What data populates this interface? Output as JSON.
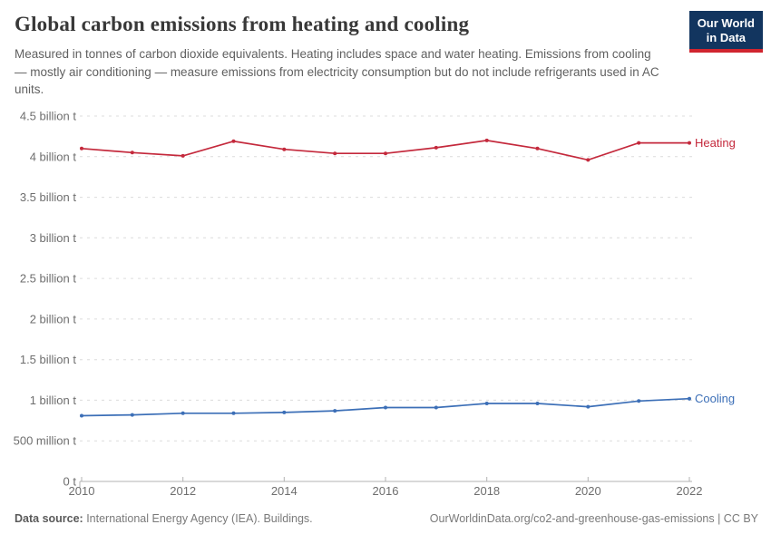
{
  "header": {
    "title": "Global carbon emissions from heating and cooling",
    "subtitle": "Measured in tonnes of carbon dioxide equivalents. Heating includes space and water heating. Emissions from cooling — mostly air conditioning — measure emissions from electricity consumption but do not include refrigerants used in AC units."
  },
  "logo": {
    "line1": "Our World",
    "line2": "in Data",
    "bg_color": "#12355f",
    "accent_color": "#d0252f"
  },
  "chart_data": {
    "type": "line",
    "title": "Global carbon emissions from heating and cooling",
    "x": [
      2010,
      2011,
      2012,
      2013,
      2014,
      2015,
      2016,
      2017,
      2018,
      2019,
      2020,
      2021,
      2022
    ],
    "series": [
      {
        "name": "Heating",
        "color": "#c4293c",
        "values_billion_t": [
          4.1,
          4.05,
          4.01,
          4.19,
          4.09,
          4.04,
          4.04,
          4.11,
          4.2,
          4.1,
          3.96,
          4.17,
          4.17
        ]
      },
      {
        "name": "Cooling",
        "color": "#3c6fb7",
        "values_billion_t": [
          0.81,
          0.82,
          0.84,
          0.84,
          0.85,
          0.87,
          0.91,
          0.91,
          0.96,
          0.96,
          0.92,
          0.99,
          1.02
        ]
      }
    ],
    "ylim": [
      0,
      4.5
    ],
    "yticks": [
      {
        "value": 0,
        "label": "0 t"
      },
      {
        "value": 0.5,
        "label": "500 million t"
      },
      {
        "value": 1,
        "label": "1 billion t"
      },
      {
        "value": 1.5,
        "label": "1.5 billion t"
      },
      {
        "value": 2,
        "label": "2 billion t"
      },
      {
        "value": 2.5,
        "label": "2.5 billion t"
      },
      {
        "value": 3,
        "label": "3 billion t"
      },
      {
        "value": 3.5,
        "label": "3.5 billion t"
      },
      {
        "value": 4,
        "label": "4 billion t"
      },
      {
        "value": 4.5,
        "label": "4.5 billion t"
      }
    ],
    "xticks": [
      2010,
      2012,
      2014,
      2016,
      2018,
      2020,
      2022
    ],
    "grid": "horizontal-dashed",
    "grid_color": "#dcdcdc",
    "axis_color": "#b3b3b3",
    "tick_label_color": "#6e6e6e",
    "legend_position": "end-of-line-labels"
  },
  "footer": {
    "source_label": "Data source:",
    "source_text": " International Energy Agency (IEA). Buildings.",
    "link_text": "OurWorldinData.org/co2-and-greenhouse-gas-emissions",
    "license_text": " | CC BY"
  }
}
